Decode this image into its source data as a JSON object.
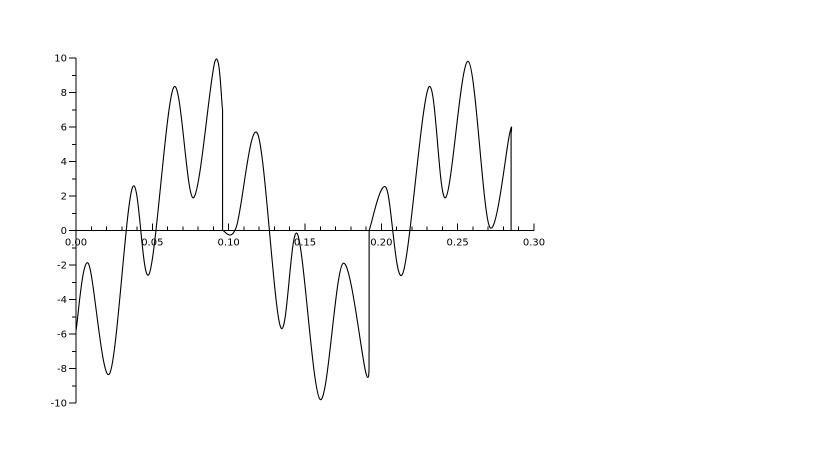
{
  "chart_data": {
    "type": "line",
    "title": "",
    "xlabel": "",
    "ylabel": "",
    "xlim": [
      0.0,
      0.3
    ],
    "ylim": [
      -10,
      10
    ],
    "grid": false,
    "legend": "none",
    "x_ticks": [
      "0.00",
      "0.05",
      "0.10",
      "0.15",
      "0.20",
      "0.25",
      "0.30"
    ],
    "y_ticks": [
      "10",
      "8",
      "6",
      "4",
      "2",
      "0",
      "-2",
      "-4",
      "-6",
      "-8",
      "-10"
    ],
    "colors": {
      "line": "#000000",
      "axis": "#000000",
      "background": "#ffffff"
    },
    "series": [
      {
        "x": [
          0.0,
          0.008,
          0.022,
          0.037,
          0.048,
          0.064,
          0.077,
          0.091,
          0.096,
          0.096,
          0.105,
          0.119,
          0.134,
          0.145,
          0.16,
          0.175,
          0.19,
          0.192,
          0.192,
          0.203,
          0.214,
          0.231,
          0.242,
          0.257,
          0.271,
          0.284,
          0.285,
          0.285
        ],
        "y": [
          -5.8,
          -1.9,
          -8.3,
          2.5,
          -2.5,
          8.3,
          1.9,
          9.8,
          7.0,
          0.0,
          0.2,
          5.6,
          -5.6,
          -0.2,
          -9.8,
          -1.9,
          -8.3,
          -7.0,
          0.0,
          2.5,
          -2.5,
          8.3,
          1.9,
          9.8,
          0.2,
          5.6,
          5.6,
          0.0
        ]
      }
    ]
  }
}
